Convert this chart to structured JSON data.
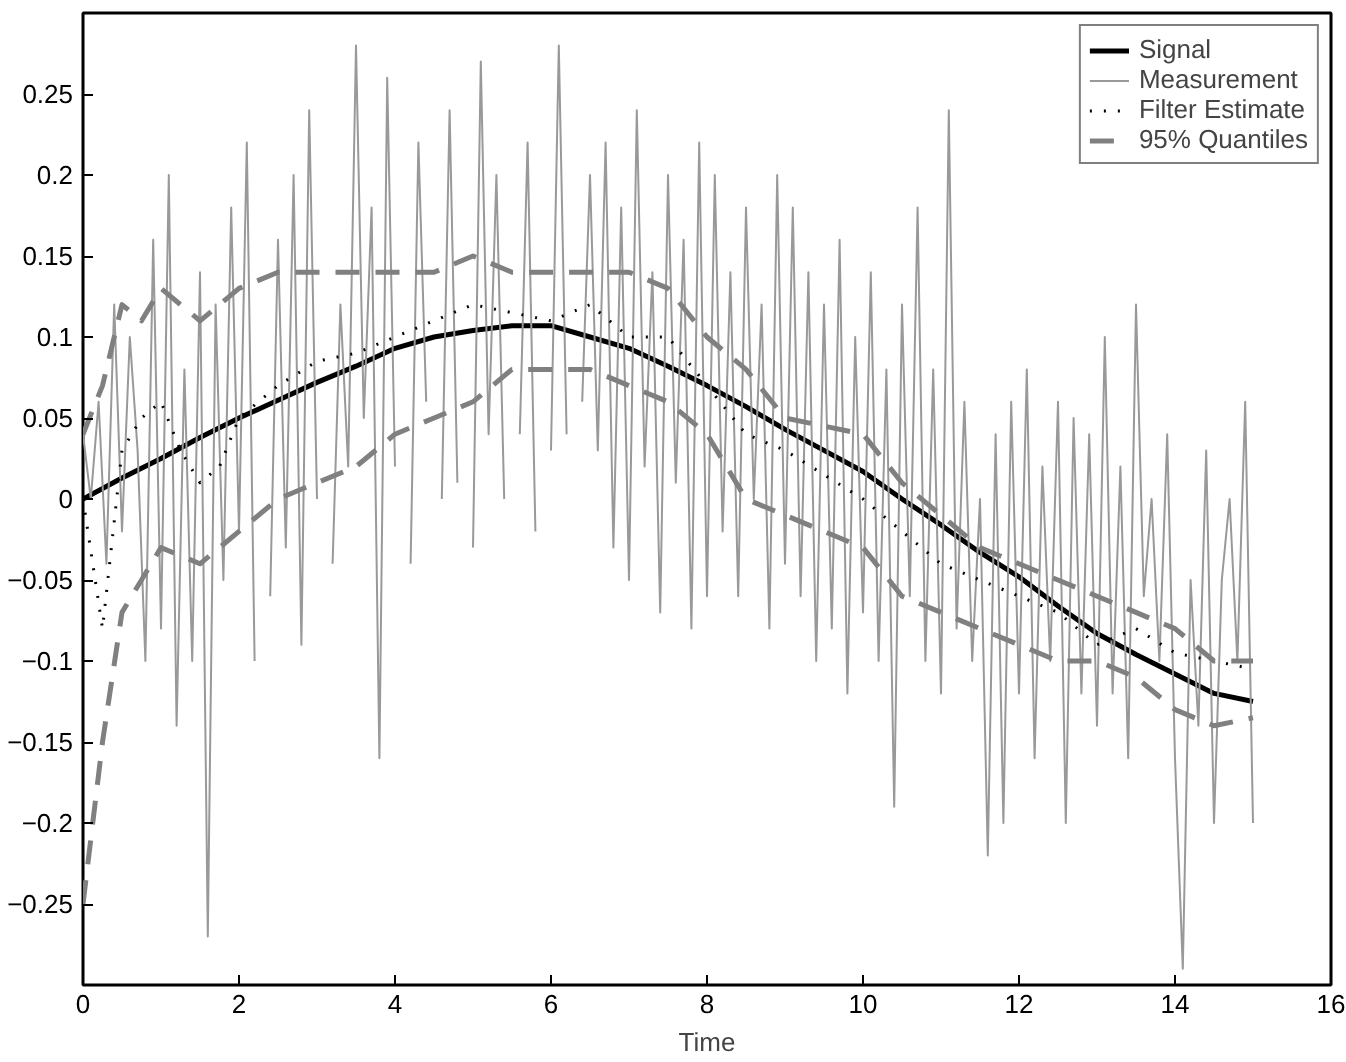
{
  "chart_data": {
    "type": "line",
    "xlabel": "Time",
    "xlim": [
      0,
      16
    ],
    "ylim": [
      -0.3,
      0.3
    ],
    "xticks": [
      0,
      2,
      4,
      6,
      8,
      10,
      12,
      14,
      16
    ],
    "yticks": [
      {
        "value": -0.25,
        "label": "−0.25"
      },
      {
        "value": -0.2,
        "label": "−0.2"
      },
      {
        "value": -0.15,
        "label": "−0.15"
      },
      {
        "value": -0.1,
        "label": "−0.1"
      },
      {
        "value": -0.05,
        "label": "−0.05"
      },
      0,
      0.05,
      0.1,
      0.15,
      0.2,
      0.25
    ],
    "grid": false,
    "legend": "top right",
    "series": [
      {
        "name": "Signal",
        "color": "#000000",
        "line_style": "solid",
        "x": [
          0,
          0.5,
          1,
          1.5,
          2,
          2.5,
          3,
          3.5,
          4,
          4.5,
          5,
          5.5,
          6,
          6.5,
          7,
          7.5,
          8,
          8.5,
          9,
          9.5,
          10,
          10.5,
          11,
          11.5,
          12,
          12.5,
          13,
          13.5,
          14,
          14.5,
          15
        ],
        "values": [
          0.0,
          0.013,
          0.025,
          0.038,
          0.05,
          0.061,
          0.072,
          0.082,
          0.093,
          0.1,
          0.104,
          0.107,
          0.107,
          0.1,
          0.093,
          0.082,
          0.07,
          0.057,
          0.043,
          0.03,
          0.017,
          0.0,
          -0.016,
          -0.033,
          -0.048,
          -0.066,
          -0.083,
          -0.096,
          -0.108,
          -0.12,
          -0.125
        ]
      },
      {
        "name": "Measurement",
        "color": "#999999",
        "line_style": "solid",
        "x": [
          0,
          0.1,
          0.2,
          0.3,
          0.4,
          0.5,
          0.6,
          0.7,
          0.8,
          0.9,
          1,
          1.1,
          1.2,
          1.3,
          1.4,
          1.5,
          1.6,
          1.7,
          1.8,
          1.9,
          2,
          2.1,
          2.2,
          2.3,
          2.4,
          2.5,
          2.6,
          2.7,
          2.8,
          2.9,
          3,
          3.1,
          3.2,
          3.3,
          3.4,
          3.5,
          3.6,
          3.7,
          3.8,
          3.9,
          4,
          4.1,
          4.2,
          4.3,
          4.4,
          4.5,
          4.6,
          4.7,
          4.8,
          4.9,
          5,
          5.1,
          5.2,
          5.3,
          5.4,
          5.5,
          5.6,
          5.7,
          5.8,
          5.9,
          6,
          6.1,
          6.2,
          6.3,
          6.4,
          6.5,
          6.6,
          6.7,
          6.8,
          6.9,
          7,
          7.1,
          7.2,
          7.3,
          7.4,
          7.5,
          7.6,
          7.7,
          7.8,
          7.9,
          8,
          8.1,
          8.2,
          8.3,
          8.4,
          8.5,
          8.6,
          8.7,
          8.8,
          8.9,
          9,
          9.1,
          9.2,
          9.3,
          9.4,
          9.5,
          9.6,
          9.7,
          9.8,
          9.9,
          10,
          10.1,
          10.2,
          10.3,
          10.4,
          10.5,
          10.6,
          10.7,
          10.8,
          10.9,
          11,
          11.1,
          11.2,
          11.3,
          11.4,
          11.5,
          11.6,
          11.7,
          11.8,
          11.9,
          12,
          12.1,
          12.2,
          12.3,
          12.4,
          12.5,
          12.6,
          12.7,
          12.8,
          12.9,
          13,
          13.1,
          13.2,
          13.3,
          13.4,
          13.5,
          13.6,
          13.7,
          13.8,
          13.9,
          14,
          14.1,
          14.2,
          14.3,
          14.4,
          14.5,
          14.6,
          14.7,
          14.8,
          14.9,
          15
        ],
        "values": [
          0.04,
          0.0,
          0.06,
          -0.04,
          0.12,
          -0.02,
          0.1,
          0.03,
          -0.1,
          0.16,
          -0.08,
          0.2,
          -0.14,
          0.08,
          -0.1,
          0.14,
          -0.27,
          0.12,
          -0.05,
          0.18,
          -0.02,
          0.22,
          -0.1,
          null,
          -0.06,
          0.16,
          -0.03,
          0.2,
          -0.09,
          0.24,
          0.0,
          null,
          -0.04,
          0.12,
          0.02,
          0.28,
          0.05,
          0.18,
          -0.16,
          0.26,
          0.02,
          null,
          -0.04,
          0.22,
          0.06,
          null,
          0.0,
          0.24,
          0.01,
          null,
          -0.03,
          0.27,
          0.04,
          0.2,
          0.0,
          null,
          0.04,
          0.22,
          -0.02,
          null,
          0.03,
          0.28,
          0.04,
          null,
          0.06,
          0.2,
          0.03,
          0.22,
          -0.03,
          0.18,
          -0.05,
          0.24,
          0.02,
          0.14,
          -0.07,
          0.2,
          0.01,
          0.16,
          -0.08,
          0.22,
          -0.06,
          0.2,
          -0.02,
          0.14,
          -0.06,
          0.18,
          0.0,
          0.12,
          -0.08,
          0.2,
          -0.04,
          0.18,
          -0.06,
          0.14,
          -0.1,
          0.12,
          -0.08,
          0.16,
          -0.12,
          0.1,
          -0.07,
          0.14,
          -0.1,
          0.08,
          -0.19,
          0.12,
          -0.06,
          0.18,
          -0.1,
          0.08,
          -0.12,
          0.24,
          -0.08,
          0.06,
          -0.1,
          0.0,
          -0.22,
          0.04,
          -0.2,
          0.06,
          -0.12,
          0.08,
          -0.16,
          0.02,
          -0.1,
          0.06,
          -0.2,
          0.05,
          -0.12,
          0.04,
          -0.14,
          0.1,
          -0.12,
          0.02,
          -0.16,
          0.12,
          -0.06,
          0.0,
          -0.1,
          0.04,
          -0.16,
          -0.29,
          -0.05,
          -0.14,
          0.03,
          -0.2,
          -0.05,
          0.0,
          -0.1,
          0.06,
          -0.2
        ]
      },
      {
        "name": "Filter Estimate",
        "color": "#000000",
        "line_style": "dotted",
        "x": [
          0,
          0.25,
          0.5,
          0.75,
          1,
          1.25,
          1.5,
          1.75,
          2,
          2.5,
          3,
          3.5,
          4,
          4.5,
          5,
          5.5,
          6,
          6.5,
          7,
          7.5,
          8,
          8.5,
          9,
          9.5,
          10,
          10.5,
          11,
          11.5,
          12,
          12.5,
          13,
          13.5,
          14,
          14.5,
          15
        ],
        "values": [
          0.0,
          -0.08,
          0.03,
          0.05,
          0.06,
          0.03,
          0.01,
          0.02,
          0.05,
          0.07,
          0.085,
          0.09,
          0.1,
          0.11,
          0.12,
          0.115,
          0.11,
          0.12,
          0.1,
          0.1,
          0.07,
          0.04,
          0.03,
          0.015,
          0.0,
          -0.02,
          -0.04,
          -0.05,
          -0.06,
          -0.07,
          -0.09,
          -0.08,
          -0.095,
          -0.1,
          -0.105
        ]
      },
      {
        "name": "95% Quantiles",
        "color": "#808080",
        "line_style": "dashed",
        "x": [
          0,
          0.25,
          0.5,
          0.75,
          1,
          1.5,
          2,
          2.5,
          3,
          3.5,
          4,
          4.5,
          5,
          5.5,
          6,
          6.5,
          7,
          7.5,
          8,
          8.5,
          9,
          9.5,
          10,
          10.5,
          11,
          11.5,
          12,
          12.5,
          13,
          13.5,
          14,
          14.5,
          15
        ],
        "values": [
          0.04,
          0.07,
          0.12,
          0.11,
          0.13,
          0.11,
          0.13,
          0.14,
          0.14,
          0.14,
          0.14,
          0.14,
          0.15,
          0.14,
          0.14,
          0.14,
          0.14,
          0.13,
          0.1,
          0.08,
          0.05,
          0.045,
          0.04,
          0.01,
          -0.01,
          -0.03,
          -0.04,
          -0.05,
          -0.06,
          -0.07,
          -0.08,
          -0.1,
          -0.1
        ]
      },
      {
        "color": "#808080",
        "line_style": "dashed",
        "x": [
          0,
          0.25,
          0.5,
          0.75,
          1,
          1.5,
          2,
          2.5,
          3,
          3.5,
          4,
          4.5,
          5,
          5.5,
          6,
          6.5,
          7,
          7.5,
          8,
          8.5,
          9,
          9.5,
          10,
          10.5,
          11,
          11.5,
          12,
          12.5,
          13,
          13.5,
          14,
          14.5,
          15
        ],
        "values": [
          -0.25,
          -0.15,
          -0.07,
          -0.05,
          -0.03,
          -0.04,
          -0.02,
          0.0,
          0.01,
          0.02,
          0.04,
          0.05,
          0.06,
          0.08,
          0.08,
          0.08,
          0.07,
          0.06,
          0.04,
          0.0,
          -0.01,
          -0.02,
          -0.03,
          -0.06,
          -0.07,
          -0.08,
          -0.09,
          -0.1,
          -0.1,
          -0.11,
          -0.13,
          -0.14,
          -0.135
        ]
      }
    ]
  }
}
